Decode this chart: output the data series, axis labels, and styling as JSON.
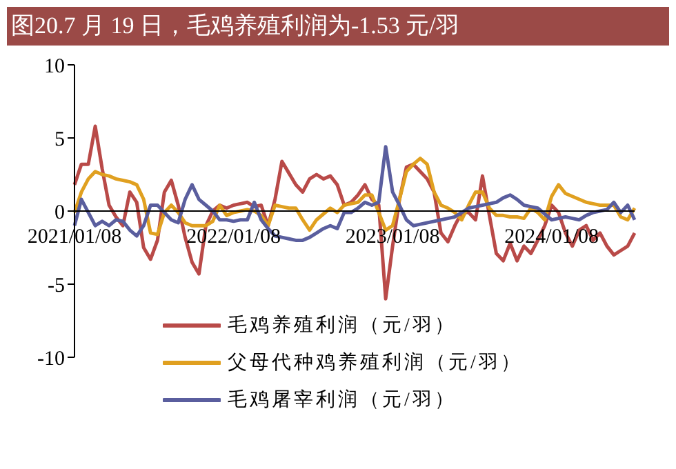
{
  "chart_data": {
    "type": "line",
    "title": "图20.7 月 19 日，毛鸡养殖利润为-1.53 元/羽",
    "categories": [
      "2021/01/08",
      null,
      null,
      null,
      null,
      null,
      null,
      null,
      null,
      null,
      null,
      null,
      null,
      null,
      null,
      null,
      null,
      null,
      null,
      null,
      null,
      null,
      null,
      "2022/01/08",
      null,
      null,
      null,
      null,
      null,
      null,
      null,
      null,
      null,
      null,
      null,
      null,
      null,
      null,
      null,
      null,
      null,
      null,
      null,
      null,
      null,
      null,
      "2023/01/08",
      null,
      null,
      null,
      null,
      null,
      null,
      null,
      null,
      null,
      null,
      null,
      null,
      null,
      null,
      null,
      null,
      null,
      null,
      null,
      null,
      null,
      null,
      "2024/01/08",
      null,
      null,
      null,
      null,
      null,
      null,
      null,
      null,
      null,
      null,
      null,
      null
    ],
    "series": [
      {
        "name": "毛鸡养殖利润（元/羽）",
        "color": "#b94a48",
        "values": [
          1.8,
          3.2,
          3.2,
          5.8,
          2.9,
          0.4,
          -0.4,
          -1,
          1.3,
          0.6,
          -2.5,
          -3.3,
          -2,
          1.3,
          2.1,
          0.4,
          -1.8,
          -3.5,
          -4.3,
          -1,
          0,
          0.4,
          0.2,
          0.4,
          0.5,
          0.6,
          0.3,
          0.4,
          -1,
          0.8,
          3.4,
          2.6,
          1.8,
          1.3,
          2.2,
          2.5,
          2.2,
          2.4,
          1.8,
          0.4,
          0.6,
          1.1,
          1.8,
          0.8,
          0.4,
          -6,
          -2.4,
          0.8,
          3,
          3.2,
          2.7,
          2.2,
          1.3,
          -1.5,
          -2.1,
          -1,
          -0.1,
          -0.1,
          -0.6,
          2.4,
          -0.3,
          -2.9,
          -3.4,
          -2.2,
          -3.4,
          -2.4,
          -2.9,
          -2,
          -1,
          0.4,
          -0.1,
          -1.5,
          -2.4,
          -1.3,
          -1,
          -2,
          -1.5,
          -2.4,
          -3,
          -2.7,
          -2.4,
          -1.5
        ]
      },
      {
        "name": "父母代种鸡养殖利润（元/羽）",
        "color": "#e0a020",
        "values": [
          -0.1,
          1.3,
          2.2,
          2.7,
          2.5,
          2.4,
          2.2,
          2.1,
          2,
          1.8,
          0.8,
          -1.5,
          -1.6,
          -0.1,
          0.4,
          -0.1,
          -0.8,
          -1,
          -1,
          -1,
          -0.7,
          0.4,
          -0.3,
          -0.1,
          0,
          0.1,
          0,
          -0.3,
          -1,
          0.4,
          0.3,
          0.2,
          0.2,
          -0.6,
          -1.3,
          -0.6,
          -0.2,
          0.2,
          -0.1,
          0.4,
          0.5,
          0.6,
          1.1,
          1.1,
          -0.1,
          -1.3,
          -1,
          0.8,
          2.7,
          3.2,
          3.6,
          3.2,
          1.3,
          0.4,
          0.2,
          -0.1,
          -0.6,
          0.4,
          1.3,
          1.3,
          0.2,
          -0.3,
          -0.3,
          -0.4,
          -0.4,
          -0.5,
          0.2,
          -0.1,
          -0.6,
          1,
          1.8,
          1.2,
          1,
          0.8,
          0.6,
          0.5,
          0.4,
          0.4,
          0.4,
          -0.4,
          -0.6,
          0.2
        ]
      },
      {
        "name": "毛鸡屠宰利润（元/羽）",
        "color": "#5a5e9e",
        "values": [
          -1,
          0.8,
          -0.1,
          -1,
          -0.7,
          -1,
          -0.6,
          -0.7,
          -1.3,
          -1.7,
          -1,
          0.4,
          0.4,
          -0.1,
          -0.6,
          -0.8,
          0.8,
          1.8,
          0.8,
          0.4,
          0,
          -0.6,
          -0.6,
          -0.7,
          -0.6,
          -0.6,
          0.6,
          -0.6,
          -1.2,
          -1.7,
          -1.8,
          -1.9,
          -2,
          -2,
          -1.8,
          -1.5,
          -1.2,
          -1,
          -1.2,
          -0.1,
          -0.1,
          0.2,
          0.6,
          0.4,
          0.6,
          4.4,
          1.3,
          0.4,
          -0.6,
          -1,
          -0.9,
          -0.8,
          -0.7,
          -0.6,
          -0.5,
          -0.4,
          -0.1,
          0.2,
          0.3,
          0.4,
          0.5,
          0.6,
          0.9,
          1.1,
          0.8,
          0.4,
          0.3,
          0.2,
          -0.2,
          -0.6,
          -0.5,
          -0.4,
          -0.5,
          -0.6,
          -0.3,
          -0.1,
          0,
          0.1,
          0.6,
          -0.1,
          0.4,
          -0.6
        ]
      }
    ],
    "ylim": [
      -10,
      10
    ],
    "yticks": [
      -10,
      -5,
      0,
      5,
      10
    ],
    "grid": false,
    "legend": "bottom",
    "marker": "none",
    "line_style": "solid"
  }
}
